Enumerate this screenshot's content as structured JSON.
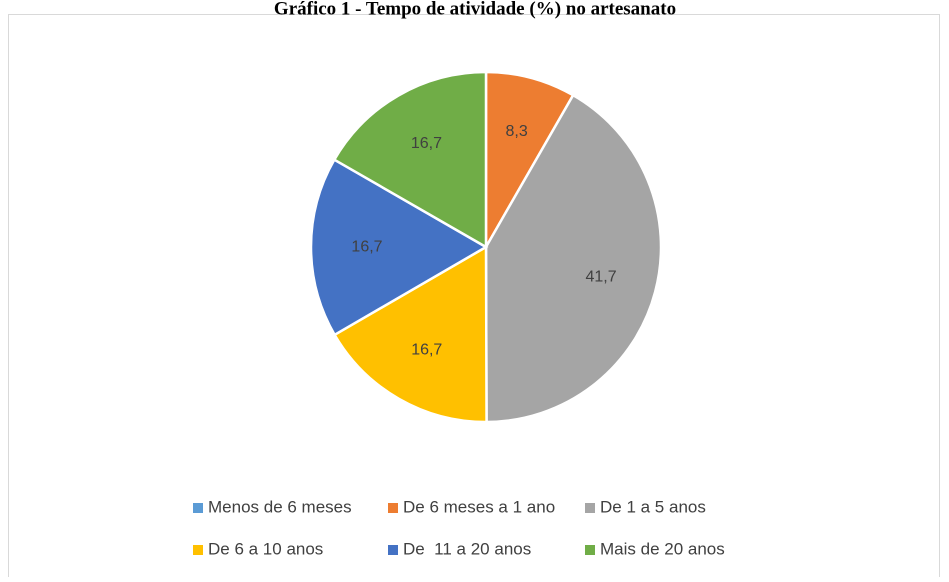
{
  "chart_data": {
    "type": "pie",
    "title": "Gráfico 1 - Tempo de atividade (%) no artesanato",
    "categories": [
      "Menos de 6 meses",
      "De 6 meses a 1 ano",
      "De 1 a 5 anos",
      "De 6 a 10 anos",
      "De  11 a 20 anos",
      "Mais de 20 anos"
    ],
    "values": [
      0,
      8.3,
      41.7,
      16.7,
      16.7,
      16.7
    ],
    "value_labels": [
      null,
      "8,3",
      "41,7",
      "16,7",
      "16,7",
      "16,7"
    ],
    "colors": [
      "#5b9bd5",
      "#ed7d31",
      "#a5a5a5",
      "#ffc000",
      "#4472c4",
      "#70ad47"
    ],
    "legend": "bottom"
  }
}
